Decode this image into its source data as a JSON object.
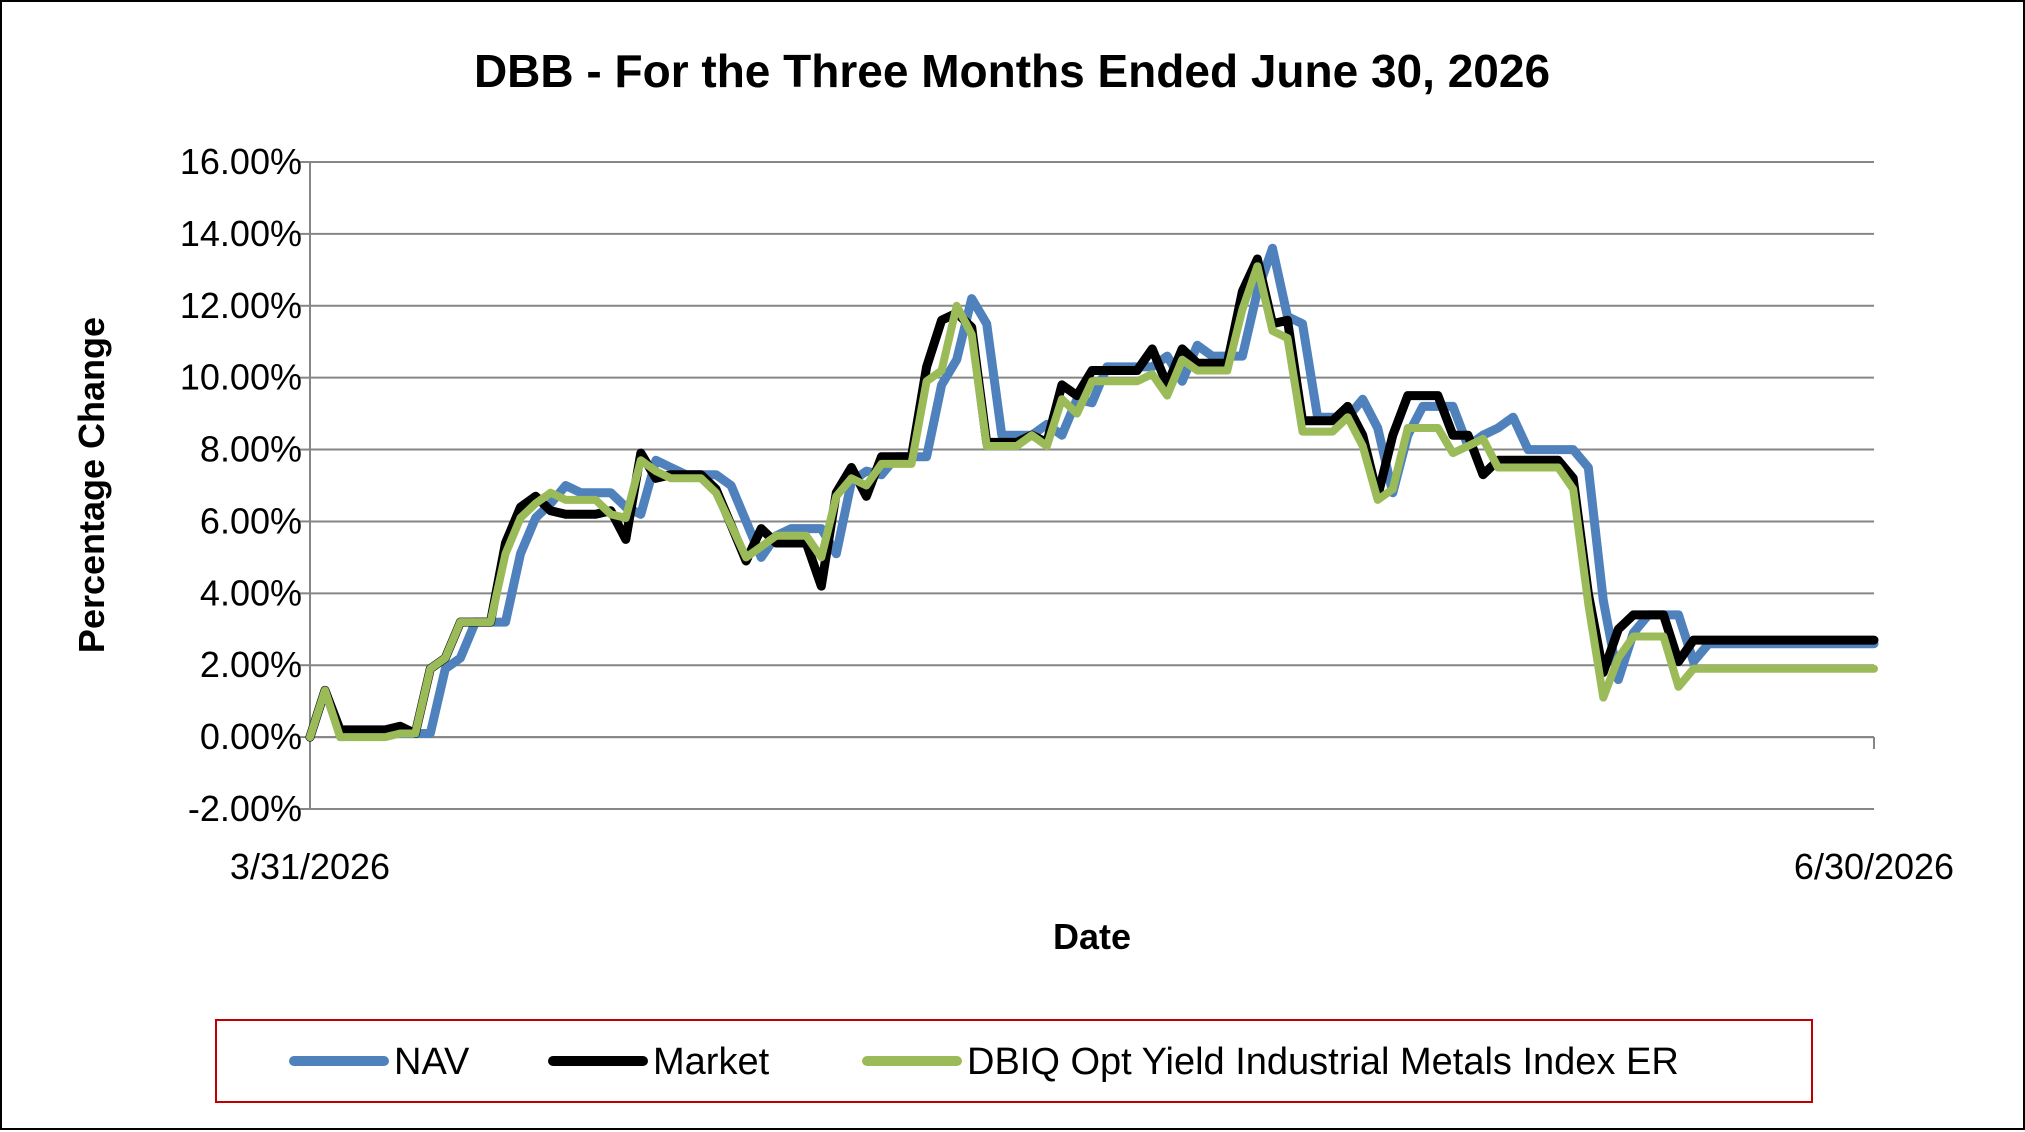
{
  "chart_data": {
    "type": "line",
    "title": "DBB - For the Three Months Ended June 30, 2026",
    "xlabel": "Date",
    "ylabel": "Percentage Change",
    "x_tick_labels": [
      "3/31/2026",
      "6/30/2026"
    ],
    "y_ticks": [
      -2,
      0,
      2,
      4,
      6,
      8,
      10,
      12,
      14,
      16
    ],
    "y_tick_labels": [
      "-2.00%",
      "0.00%",
      "2.00%",
      "4.00%",
      "6.00%",
      "8.00%",
      "10.00%",
      "12.00%",
      "14.00%",
      "16.00%"
    ],
    "ylim": [
      -2,
      16
    ],
    "grid": true,
    "legend_position": "bottom",
    "x": [
      0,
      1,
      2,
      3,
      4,
      5,
      6,
      7,
      8,
      9,
      10,
      11,
      12,
      13,
      14,
      15,
      16,
      17,
      18,
      19,
      20,
      21,
      22,
      23,
      24,
      25,
      26,
      27,
      28,
      29,
      30,
      31,
      32,
      33,
      34,
      35,
      36,
      37,
      38,
      39,
      40,
      41,
      42,
      43,
      44,
      45,
      46,
      47,
      48,
      49,
      50,
      51,
      52,
      53,
      54,
      55,
      56,
      57,
      58,
      59,
      60,
      61,
      62,
      63,
      64,
      65,
      66,
      67,
      68,
      69,
      70,
      71,
      72,
      73,
      74,
      75,
      76,
      77,
      78,
      79,
      80,
      81,
      82,
      83,
      84,
      85,
      86,
      87,
      88,
      89,
      90,
      91,
      92,
      93,
      94,
      95,
      96,
      97,
      98,
      99,
      100,
      101,
      102,
      103,
      104
    ],
    "series": [
      {
        "name": "NAV",
        "color": "#4f81bd",
        "values": [
          0.0,
          1.3,
          0.1,
          0.1,
          0.1,
          0.1,
          0.1,
          0.1,
          0.1,
          1.9,
          2.2,
          3.2,
          3.2,
          3.2,
          5.1,
          6.1,
          6.5,
          7.0,
          6.8,
          6.8,
          6.8,
          6.4,
          6.2,
          7.7,
          7.5,
          7.3,
          7.3,
          7.3,
          7.0,
          6.0,
          5.0,
          5.6,
          5.8,
          5.8,
          5.8,
          5.1,
          7.1,
          7.4,
          7.3,
          7.8,
          7.8,
          7.8,
          9.8,
          10.5,
          12.2,
          11.5,
          8.4,
          8.4,
          8.4,
          8.7,
          8.4,
          9.4,
          9.3,
          10.3,
          10.3,
          10.3,
          10.3,
          10.6,
          9.9,
          10.9,
          10.6,
          10.6,
          10.6,
          12.4,
          13.6,
          11.7,
          11.5,
          8.9,
          8.9,
          8.9,
          9.4,
          8.6,
          6.8,
          8.4,
          9.2,
          9.2,
          9.2,
          8.1,
          8.4,
          8.6,
          8.9,
          8.0,
          8.0,
          8.0,
          8.0,
          7.5,
          3.8,
          1.6,
          2.9,
          3.4,
          3.4,
          3.4,
          2.1,
          2.6,
          2.6,
          2.6,
          2.6,
          2.6,
          2.6,
          2.6,
          2.6,
          2.6,
          2.6,
          2.6,
          2.6
        ]
      },
      {
        "name": "Market",
        "color": "#000000",
        "values": [
          0.0,
          1.3,
          0.2,
          0.2,
          0.2,
          0.2,
          0.3,
          0.1,
          1.9,
          2.2,
          3.2,
          3.2,
          3.2,
          5.4,
          6.4,
          6.7,
          6.3,
          6.2,
          6.2,
          6.2,
          6.3,
          5.5,
          7.9,
          7.2,
          7.3,
          7.3,
          7.3,
          6.9,
          5.9,
          4.9,
          5.8,
          5.4,
          5.4,
          5.4,
          4.2,
          6.8,
          7.5,
          6.7,
          7.8,
          7.8,
          7.8,
          10.3,
          11.6,
          11.8,
          11.4,
          8.2,
          8.2,
          8.2,
          8.4,
          8.2,
          9.8,
          9.5,
          10.2,
          10.2,
          10.2,
          10.2,
          10.8,
          9.8,
          10.8,
          10.4,
          10.4,
          10.4,
          12.4,
          13.3,
          11.5,
          11.6,
          8.8,
          8.8,
          8.8,
          9.2,
          8.4,
          6.7,
          8.4,
          9.5,
          9.5,
          9.5,
          8.4,
          8.4,
          7.3,
          7.7,
          7.7,
          7.7,
          7.7,
          7.7,
          7.2,
          4.0,
          1.8,
          3.0,
          3.4,
          3.4,
          3.4,
          2.1,
          2.7,
          2.7,
          2.7,
          2.7,
          2.7,
          2.7,
          2.7,
          2.7,
          2.7,
          2.7,
          2.7,
          2.7,
          2.7
        ]
      },
      {
        "name": "DBIQ Opt Yield Industrial Metals Index ER",
        "color": "#9bbb59",
        "values": [
          0.0,
          1.3,
          0.0,
          0.0,
          0.0,
          0.0,
          0.1,
          0.1,
          1.9,
          2.2,
          3.2,
          3.2,
          3.2,
          5.1,
          6.1,
          6.5,
          6.8,
          6.6,
          6.6,
          6.6,
          6.2,
          6.1,
          7.7,
          7.4,
          7.2,
          7.2,
          7.2,
          6.8,
          5.9,
          5.0,
          5.3,
          5.6,
          5.6,
          5.6,
          5.0,
          6.7,
          7.2,
          7.0,
          7.6,
          7.6,
          7.6,
          9.9,
          10.2,
          12.0,
          11.2,
          8.1,
          8.1,
          8.1,
          8.4,
          8.1,
          9.4,
          9.0,
          9.9,
          9.9,
          9.9,
          9.9,
          10.1,
          9.5,
          10.5,
          10.2,
          10.2,
          10.2,
          11.9,
          13.1,
          11.3,
          11.1,
          8.5,
          8.5,
          8.5,
          8.9,
          8.1,
          6.6,
          6.9,
          8.6,
          8.6,
          8.6,
          7.9,
          8.1,
          8.3,
          7.5,
          7.5,
          7.5,
          7.5,
          7.5,
          6.9,
          3.7,
          1.1,
          2.2,
          2.8,
          2.8,
          2.8,
          1.4,
          1.9,
          1.9,
          1.9,
          1.9,
          1.9,
          1.9,
          1.9,
          1.9,
          1.9,
          1.9,
          1.9,
          1.9,
          1.9
        ]
      }
    ]
  }
}
